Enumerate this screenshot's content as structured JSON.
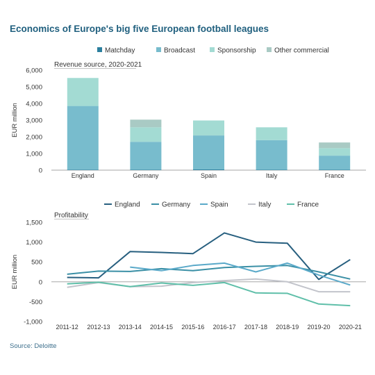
{
  "title": "Economics of Europe's big five European football leagues",
  "source": "Source: Deloitte",
  "chart_data": [
    {
      "type": "bar",
      "stacked": true,
      "subtitle": "Revenue source, 2020-2021",
      "ylabel": "EUR million",
      "ylim": [
        0,
        6000
      ],
      "yticks": [
        0,
        1000,
        2000,
        3000,
        4000,
        5000,
        6000
      ],
      "ytick_labels": [
        "0",
        "1,000",
        "2,000",
        "3,000",
        "4,000",
        "5,000",
        "6,000"
      ],
      "categories": [
        "England",
        "Germany",
        "Spain",
        "Italy",
        "France"
      ],
      "legend_position": "top",
      "series": [
        {
          "name": "Matchday",
          "color": "#2b7f9e",
          "values": [
            30,
            20,
            40,
            20,
            20
          ]
        },
        {
          "name": "Broadcast",
          "color": "#78bccd",
          "values": [
            3820,
            1680,
            2040,
            1780,
            850
          ]
        },
        {
          "name": "Sponsorship",
          "color": "#a3dbd3",
          "values": [
            1680,
            870,
            900,
            770,
            450
          ]
        },
        {
          "name": "Other commercial",
          "color": "#a9cac4",
          "values": [
            0,
            460,
            0,
            0,
            340
          ]
        }
      ]
    },
    {
      "type": "line",
      "subtitle": "Profitability",
      "ylabel": "EUR million",
      "ylim": [
        -1000,
        1500
      ],
      "yticks": [
        -1000,
        -500,
        0,
        500,
        1000,
        1500
      ],
      "ytick_labels": [
        "-1,000",
        "-500",
        "0",
        "500",
        "1,000",
        "1,500"
      ],
      "x": [
        "2011-12",
        "2012-13",
        "2013-14",
        "2014-15",
        "2015-16",
        "2016-17",
        "2017-18",
        "2018-19",
        "2019-20",
        "2020-21"
      ],
      "legend_position": "top",
      "series": [
        {
          "name": "England",
          "color": "#275f7f",
          "values": [
            110,
            100,
            760,
            740,
            710,
            1230,
            1000,
            970,
            60,
            560
          ]
        },
        {
          "name": "Germany",
          "color": "#3a8fa5",
          "values": [
            190,
            270,
            260,
            330,
            280,
            360,
            390,
            410,
            250,
            70
          ]
        },
        {
          "name": "Spain",
          "color": "#5aa9c9",
          "values": [
            null,
            null,
            370,
            280,
            410,
            470,
            250,
            470,
            170,
            -80
          ]
        },
        {
          "name": "Italy",
          "color": "#c2c4cb",
          "values": [
            -140,
            -20,
            -120,
            -110,
            -20,
            30,
            70,
            0,
            -250,
            -250
          ]
        },
        {
          "name": "France",
          "color": "#5fbfa9",
          "values": [
            -50,
            -10,
            -120,
            -30,
            -90,
            -20,
            -280,
            -290,
            -560,
            -600
          ]
        }
      ]
    }
  ]
}
